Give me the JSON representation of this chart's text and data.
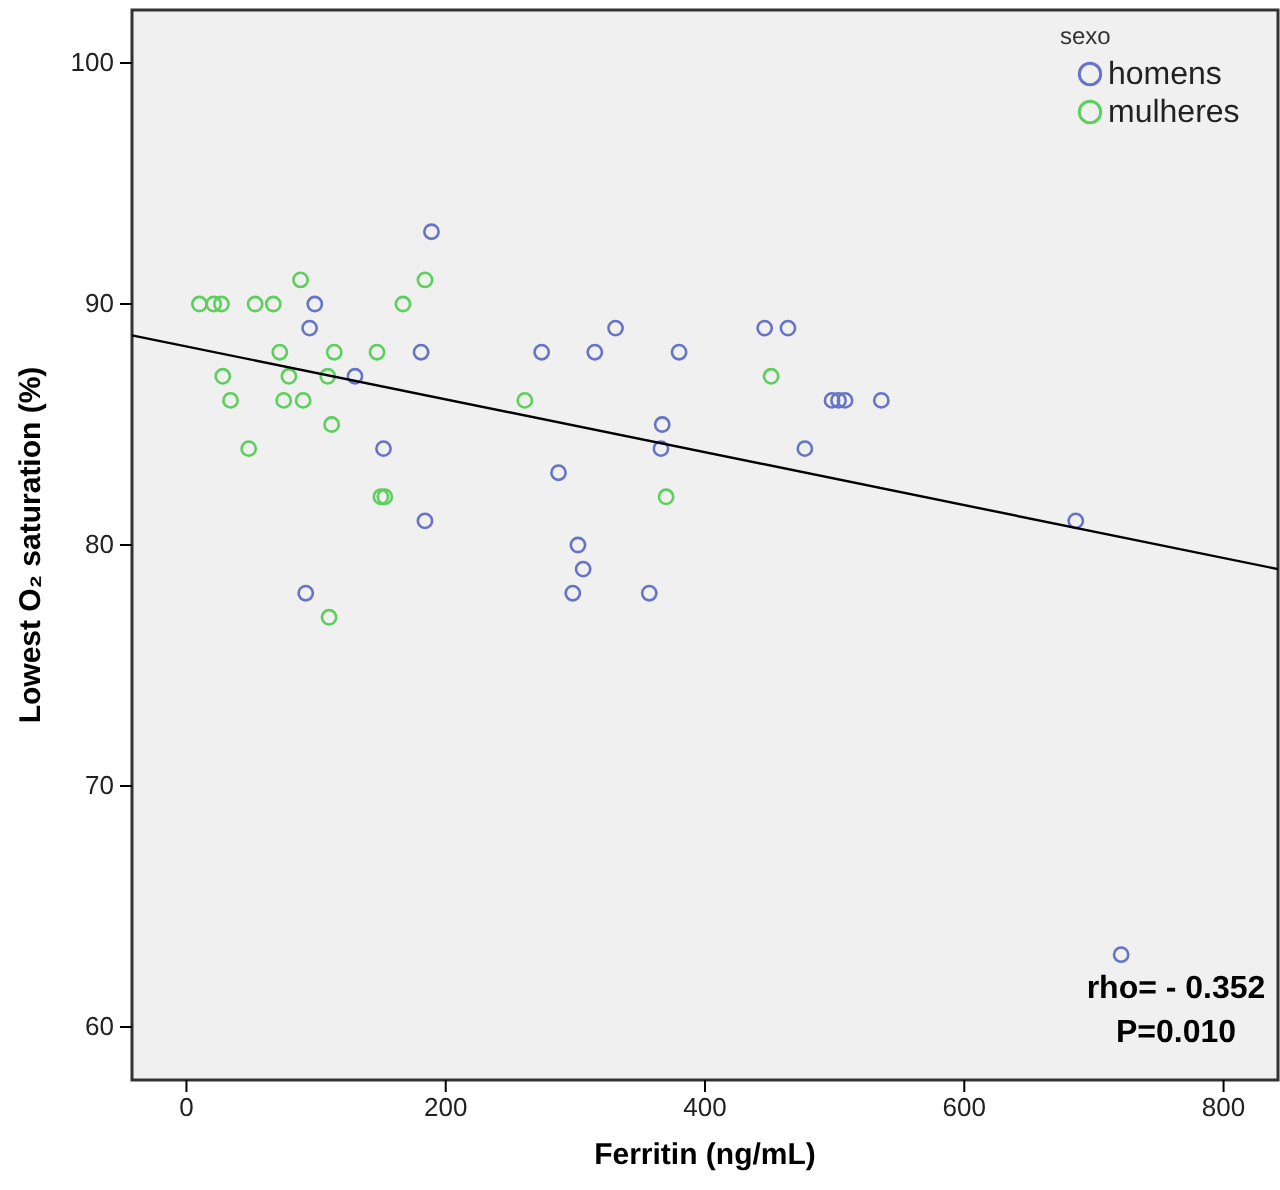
{
  "chart_data": {
    "type": "scatter",
    "xlabel": "Ferritin (ng/mL)",
    "ylabel": "Lowest O₂ saturation (%)",
    "legend_title": "sexo",
    "legend": "top right",
    "grid": false,
    "xlim": [
      -42,
      842
    ],
    "xticks": [
      0,
      200,
      400,
      600,
      800
    ],
    "ylim": [
      57.8,
      102.2
    ],
    "yticks": [
      60,
      70,
      80,
      90,
      100
    ],
    "annotations": [
      "rho= - 0.352",
      "P=0.010"
    ],
    "series": [
      {
        "name": "homens",
        "color": "#6674c8",
        "marker": "circle",
        "x": [
          189,
          99,
          95,
          181,
          130,
          152,
          184,
          92,
          331,
          274,
          315,
          380,
          446,
          464,
          498,
          503,
          508,
          536,
          367,
          366,
          477,
          287,
          302,
          306,
          298,
          357,
          686,
          721
        ],
        "values": [
          93,
          90,
          89,
          88,
          87,
          84,
          81,
          78,
          89,
          88,
          88,
          88,
          89,
          89,
          86,
          86,
          86,
          86,
          85,
          84,
          84,
          83,
          80,
          79,
          78,
          78,
          81,
          63
        ]
      },
      {
        "name": "mulheres",
        "color": "#5ccf5c",
        "marker": "circle",
        "x": [
          10,
          21,
          27,
          53,
          67,
          88,
          167,
          184,
          72,
          114,
          147,
          28,
          79,
          109,
          34,
          75,
          90,
          112,
          48,
          150,
          153,
          110,
          261,
          451,
          370
        ],
        "values": [
          90,
          90,
          90,
          90,
          90,
          91,
          90,
          91,
          88,
          88,
          88,
          87,
          87,
          87,
          86,
          86,
          86,
          85,
          84,
          82,
          82,
          77,
          86,
          87,
          82
        ]
      },
      {
        "type": "line",
        "color": "#000000",
        "marker": "none",
        "x": [
          -42,
          842
        ],
        "values": [
          88.7,
          79.0
        ]
      }
    ]
  }
}
